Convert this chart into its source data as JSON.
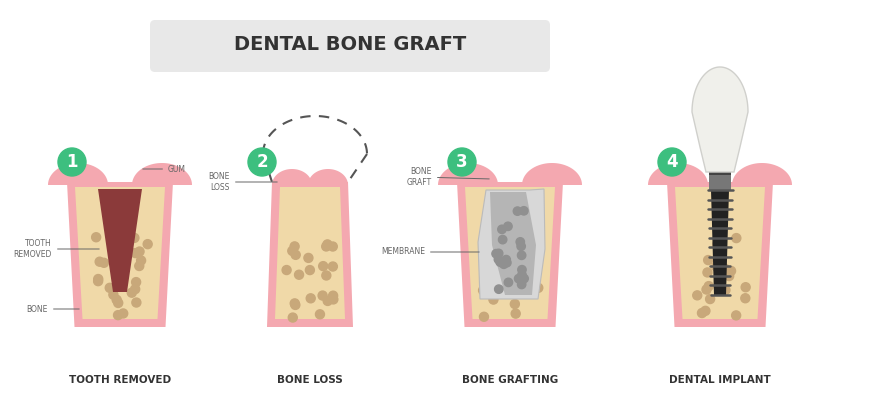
{
  "title": "DENTAL BONE GRAFT",
  "title_bg": "#e8e8e8",
  "background": "#ffffff",
  "stages": [
    "TOOTH REMOVED",
    "BONE LOSS",
    "BONE GRAFTING",
    "DENTAL IMPLANT"
  ],
  "stage_numbers": [
    "1",
    "2",
    "3",
    "4"
  ],
  "circle_color": "#3dbf7f",
  "bone_fill": "#f0d9a8",
  "bone_outline": "#f4a8b0",
  "gum_color": "#f4a8b0",
  "tooth_socket_color": "#8b3a3a",
  "bone_loss_dashed": "#555555",
  "graft_color": "#b0b0b0",
  "graft_dots": "#888888",
  "membrane_color": "#c8c8c8",
  "implant_color": "#222222",
  "crown_color": "#f0f0eb",
  "crown_outline": "#d0d0cc",
  "label_color": "#666666",
  "dot_color": "#c8a87a",
  "label_fontsize": 5.5,
  "stage_label_fontsize": 7.5,
  "title_fontsize": 14
}
